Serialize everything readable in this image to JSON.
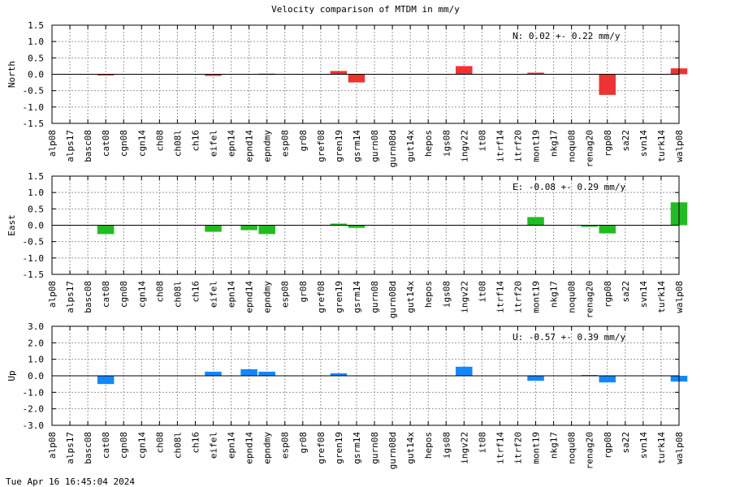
{
  "title": "Velocity comparison of MTDM in mm/y",
  "timestamp": "Tue Apr 16 16:45:04 2024",
  "chart_data": [
    {
      "type": "bar",
      "ylabel": "North",
      "annotation": "N:   0.02 +-  0.22 mm/y",
      "color": "#ee3333",
      "ylim": [
        -1.5,
        1.5
      ],
      "yticks": [
        "1.5",
        "1.0",
        "0.5",
        "0.0",
        "-0.5",
        "-1.0",
        "-1.5"
      ],
      "grid": true,
      "categories": [
        "alp08",
        "alps17",
        "basc08",
        "cat08",
        "cgn08",
        "cgn14",
        "ch08",
        "ch08l",
        "ch16",
        "eifel",
        "epn14",
        "epnd14",
        "epndmy",
        "esp08",
        "gr08",
        "gref08",
        "gren19",
        "gsrm14",
        "gurn08",
        "gurn08d",
        "gut14x",
        "hepos",
        "igs08",
        "ingv22",
        "it08",
        "itrf14",
        "itrf20",
        "mont19",
        "nkg17",
        "noqu08",
        "renag20",
        "rgp08",
        "sa22",
        "svn14",
        "turk14",
        "walp08"
      ],
      "values": [
        null,
        null,
        null,
        -0.03,
        null,
        null,
        null,
        null,
        null,
        -0.05,
        null,
        null,
        0.02,
        null,
        null,
        null,
        0.1,
        -0.25,
        null,
        null,
        null,
        null,
        null,
        0.25,
        null,
        null,
        null,
        0.05,
        null,
        null,
        null,
        -0.63,
        null,
        null,
        null,
        0.18
      ]
    },
    {
      "type": "bar",
      "ylabel": "East",
      "annotation": "E:  -0.08 +-  0.29 mm/y",
      "color": "#22bb22",
      "ylim": [
        -1.5,
        1.5
      ],
      "yticks": [
        "1.5",
        "1.0",
        "0.5",
        "0.0",
        "-0.5",
        "-1.0",
        "-1.5"
      ],
      "grid": true,
      "categories": [
        "alp08",
        "alps17",
        "basc08",
        "cat08",
        "cgn08",
        "cgn14",
        "ch08",
        "ch08l",
        "ch16",
        "eifel",
        "epn14",
        "epnd14",
        "epndmy",
        "esp08",
        "gr08",
        "gref08",
        "gren19",
        "gsrm14",
        "gurn08",
        "gurn08d",
        "gut14x",
        "hepos",
        "igs08",
        "ingv22",
        "it08",
        "itrf14",
        "itrf20",
        "mont19",
        "nkg17",
        "noqu08",
        "renag20",
        "rgp08",
        "sa22",
        "svn14",
        "turk14",
        "walp08"
      ],
      "values": [
        null,
        null,
        null,
        -0.27,
        null,
        null,
        null,
        null,
        null,
        -0.2,
        null,
        -0.15,
        -0.27,
        null,
        null,
        null,
        0.05,
        -0.08,
        null,
        null,
        null,
        null,
        null,
        null,
        null,
        null,
        null,
        0.25,
        null,
        null,
        -0.05,
        -0.25,
        null,
        null,
        null,
        0.7
      ]
    },
    {
      "type": "bar",
      "ylabel": "Up",
      "annotation": "U:  -0.57 +-  0.39 mm/y",
      "color": "#1188ff",
      "ylim": [
        -3.0,
        3.0
      ],
      "yticks": [
        "3.0",
        "2.0",
        "1.0",
        "0.0",
        "-1.0",
        "-2.0",
        "-3.0"
      ],
      "grid": true,
      "categories": [
        "alp08",
        "alps17",
        "basc08",
        "cat08",
        "cgn08",
        "cgn14",
        "ch08",
        "ch08l",
        "ch16",
        "eifel",
        "epn14",
        "epnd14",
        "epndmy",
        "esp08",
        "gr08",
        "gref08",
        "gren19",
        "gsrm14",
        "gurn08",
        "gurn08d",
        "gut14x",
        "hepos",
        "igs08",
        "ingv22",
        "it08",
        "itrf14",
        "itrf20",
        "mont19",
        "nkg17",
        "noqu08",
        "renag20",
        "rgp08",
        "sa22",
        "svn14",
        "turk14",
        "walp08"
      ],
      "values": [
        null,
        null,
        null,
        -0.5,
        null,
        null,
        null,
        null,
        null,
        0.25,
        null,
        0.4,
        0.25,
        null,
        null,
        null,
        0.15,
        null,
        null,
        null,
        null,
        null,
        null,
        0.55,
        null,
        null,
        null,
        -0.3,
        null,
        null,
        0.05,
        -0.4,
        null,
        null,
        null,
        -0.35
      ]
    }
  ]
}
